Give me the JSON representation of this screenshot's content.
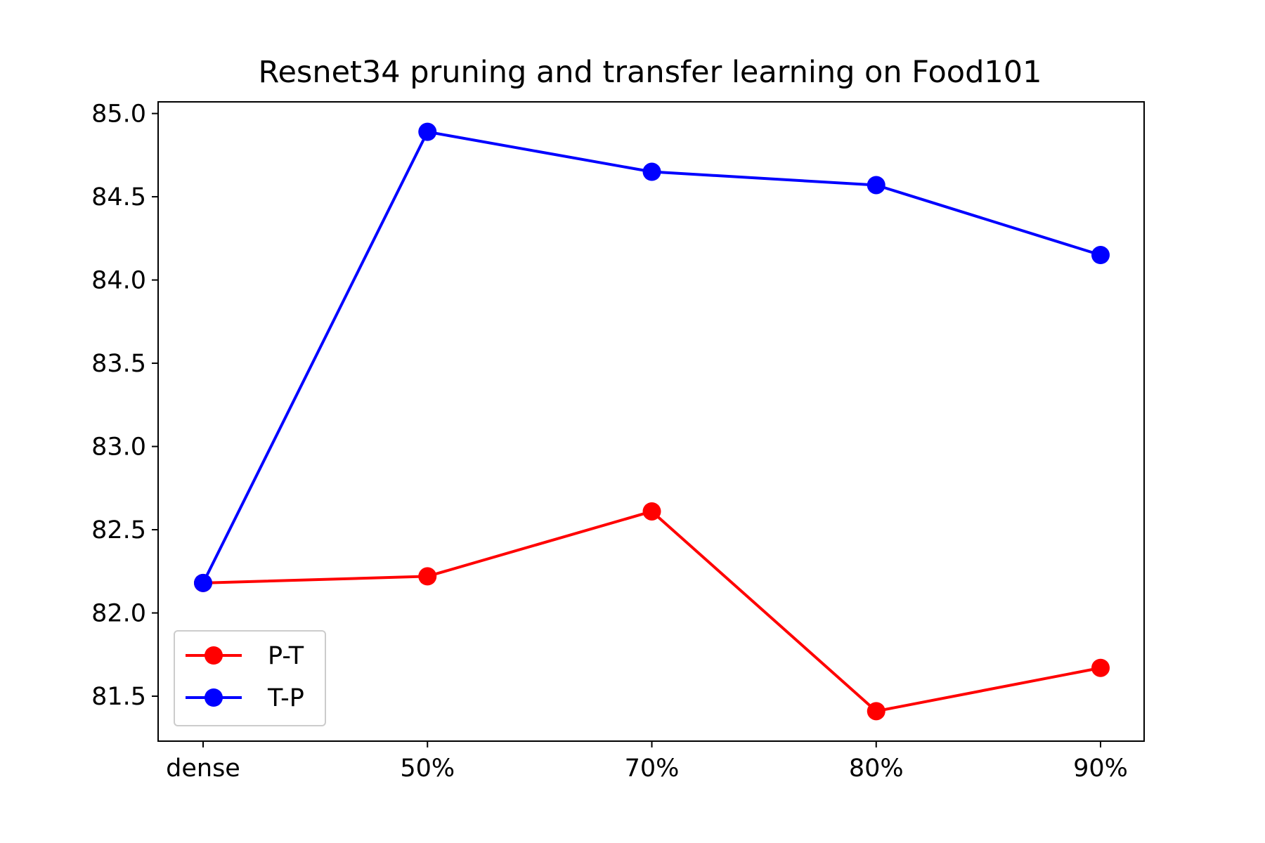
{
  "chart_data": {
    "type": "line",
    "title": "Resnet34 pruning and transfer learning on Food101",
    "xlabel": "",
    "ylabel": "",
    "categories": [
      "dense",
      "50%",
      "70%",
      "80%",
      "90%"
    ],
    "ylim": [
      81.23,
      85.07
    ],
    "yticks": [
      "81.5",
      "82.0",
      "82.5",
      "83.0",
      "83.5",
      "84.0",
      "84.5",
      "85.0"
    ],
    "grid": false,
    "legend_position": "lower-left",
    "series": [
      {
        "name": "P-T",
        "color": "#ff0000",
        "values": [
          82.18,
          82.22,
          82.61,
          81.41,
          81.67
        ]
      },
      {
        "name": "T-P",
        "color": "#0000ff",
        "values": [
          82.18,
          84.89,
          84.65,
          84.57,
          84.15
        ]
      }
    ]
  }
}
